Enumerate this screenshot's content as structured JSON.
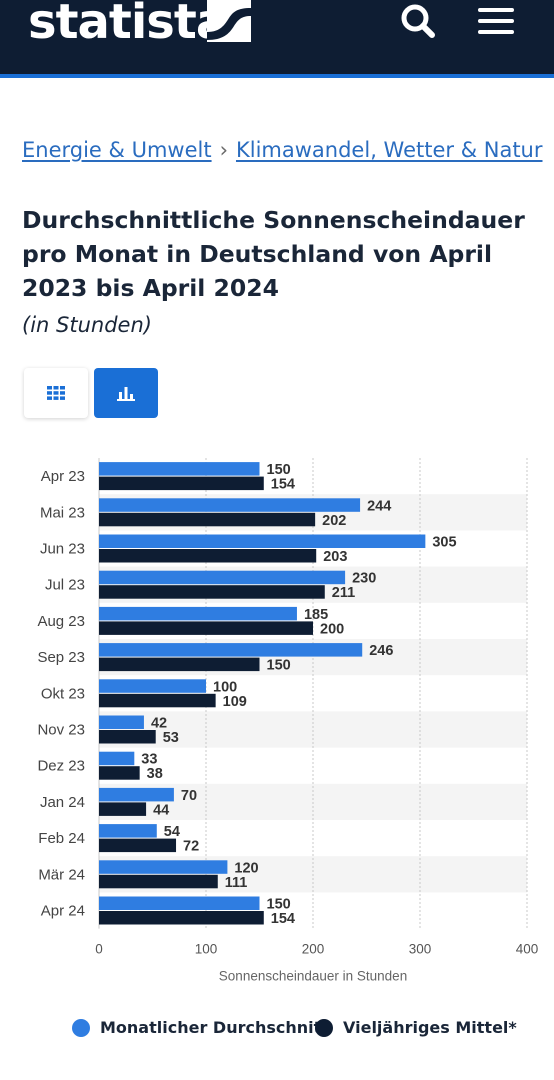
{
  "header": {
    "logo_text": "statista",
    "search_icon": "search-icon",
    "menu_icon": "hamburger-menu-icon",
    "bg_color": "#0e1d33",
    "accent_color": "#1a6fd6"
  },
  "breadcrumb": {
    "item1": "Energie & Umwelt",
    "separator": "›",
    "item2": "Klimawandel, Wetter & Natur"
  },
  "title": "Durchschnittliche Sonnenscheindauer pro Monat in Deutschland von April 2023 bis April 2024",
  "subtitle": "(in Stunden)",
  "view_toggle": {
    "table_icon": "table-grid-icon",
    "chart_icon": "bar-chart-icon",
    "active": "chart"
  },
  "chart_data": {
    "type": "bar",
    "orientation": "horizontal",
    "categories": [
      "Apr 23",
      "Mai 23",
      "Jun 23",
      "Jul 23",
      "Aug 23",
      "Sep 23",
      "Okt 23",
      "Nov 23",
      "Dez 23",
      "Jan 24",
      "Feb 24",
      "Mär 24",
      "Apr 24"
    ],
    "series": [
      {
        "name": "Monatlicher Durchschnitt",
        "color": "#2f7de1",
        "values": [
          150,
          244,
          305,
          230,
          185,
          246,
          100,
          42,
          33,
          70,
          54,
          120,
          150
        ]
      },
      {
        "name": "Vieljähriges Mittel*",
        "color": "#0e1d33",
        "values": [
          154,
          202,
          203,
          211,
          200,
          150,
          109,
          53,
          38,
          44,
          72,
          111,
          154
        ]
      }
    ],
    "xlabel": "Sonnenscheindauer in Stunden",
    "xlim": [
      0,
      400
    ],
    "xticks": [
      0,
      100,
      200,
      300,
      400
    ],
    "grid": true,
    "legend_position": "bottom"
  }
}
